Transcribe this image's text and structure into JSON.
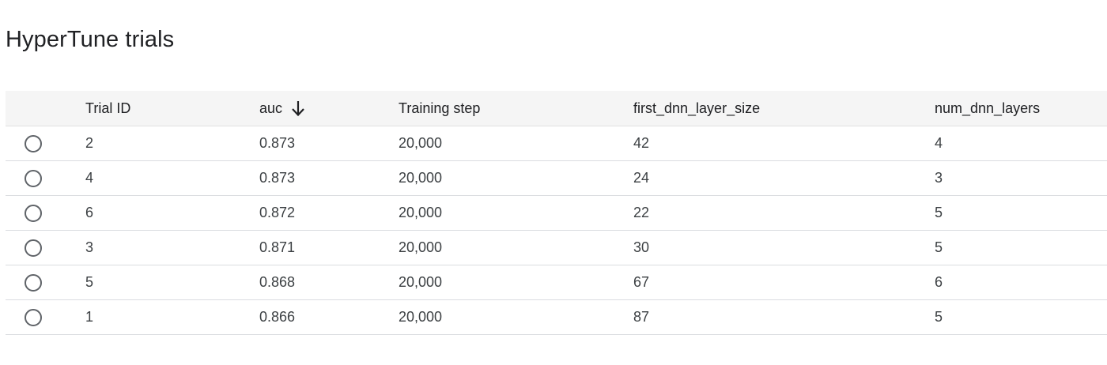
{
  "page": {
    "title": "HyperTune trials"
  },
  "table": {
    "columns": {
      "trial_id": "Trial ID",
      "auc": "auc",
      "training_step": "Training step",
      "first_dnn_layer_size": "first_dnn_layer_size",
      "num_dnn_layers": "num_dnn_layers"
    },
    "sort": {
      "column": "auc",
      "direction": "descending",
      "icon": "arrow-down-icon"
    },
    "rows": [
      {
        "trial_id": "2",
        "auc": "0.873",
        "training_step": "20,000",
        "first_dnn_layer_size": "42",
        "num_dnn_layers": "4",
        "selected": false
      },
      {
        "trial_id": "4",
        "auc": "0.873",
        "training_step": "20,000",
        "first_dnn_layer_size": "24",
        "num_dnn_layers": "3",
        "selected": false
      },
      {
        "trial_id": "6",
        "auc": "0.872",
        "training_step": "20,000",
        "first_dnn_layer_size": "22",
        "num_dnn_layers": "5",
        "selected": false
      },
      {
        "trial_id": "3",
        "auc": "0.871",
        "training_step": "20,000",
        "first_dnn_layer_size": "30",
        "num_dnn_layers": "5",
        "selected": false
      },
      {
        "trial_id": "5",
        "auc": "0.868",
        "training_step": "20,000",
        "first_dnn_layer_size": "67",
        "num_dnn_layers": "6",
        "selected": false
      },
      {
        "trial_id": "1",
        "auc": "0.866",
        "training_step": "20,000",
        "first_dnn_layer_size": "87",
        "num_dnn_layers": "5",
        "selected": false
      }
    ]
  }
}
